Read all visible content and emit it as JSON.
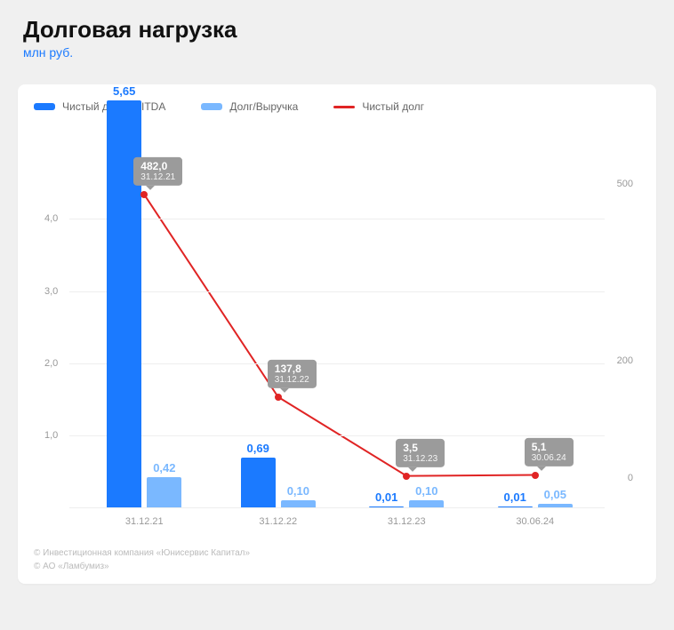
{
  "header": {
    "title": "Долговая нагрузка",
    "subtitle": "млн руб."
  },
  "legend": {
    "series1": {
      "label": "Чистый долг/EBITDA",
      "color": "#1b7aff"
    },
    "series2": {
      "label": "Долг/Выручка",
      "color": "#7ab8ff"
    },
    "series3": {
      "label": "Чистый долг",
      "color": "#e02424"
    }
  },
  "chart": {
    "categories": [
      "31.12.21",
      "31.12.22",
      "31.12.23",
      "30.06.24"
    ],
    "left_axis": {
      "min": 0,
      "max": 5.3,
      "ticks": [
        0,
        1.0,
        2.0,
        3.0,
        4.0
      ],
      "labels": [
        "",
        "1,0",
        "2,0",
        "3,0",
        "4,0"
      ]
    },
    "right_axis": {
      "min": -50,
      "max": 600,
      "ticks": [
        0,
        200,
        500
      ],
      "labels": [
        "0",
        "200",
        "500"
      ]
    },
    "bar_width_pct": 6.5,
    "group_positions_pct": [
      14,
      39,
      63,
      87
    ],
    "series1": {
      "color": "#1b7aff",
      "values": [
        5.65,
        0.69,
        0.01,
        0.01
      ],
      "labels": [
        "5,65",
        "0,69",
        "0,01",
        "0,01"
      ]
    },
    "series2": {
      "color": "#7ab8ff",
      "values": [
        0.42,
        0.1,
        0.1,
        0.05
      ],
      "labels": [
        "0,42",
        "0,10",
        "0,10",
        "0,05"
      ]
    },
    "series3": {
      "color": "#e02424",
      "values": [
        482.0,
        137.8,
        3.5,
        5.1
      ],
      "labels": [
        "482,0",
        "137,8",
        "3,5",
        "5,1"
      ],
      "tooltip_dates": [
        "31.12.21",
        "31.12.22",
        "31.12.23",
        "30.06.24"
      ]
    },
    "grid_color": "#eeeeee",
    "background": "#ffffff"
  },
  "footer": {
    "line1": "© Инвестиционная компания «Юнисервис Капитал»",
    "line2": "© АО «Ламбумиз»"
  }
}
